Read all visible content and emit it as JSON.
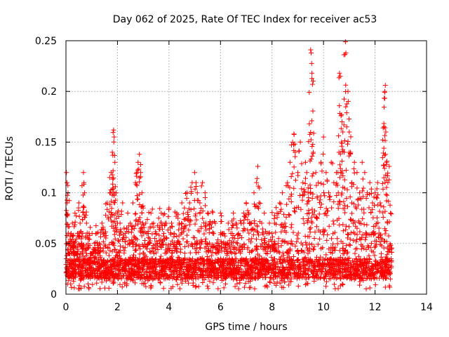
{
  "chart_data": {
    "type": "scatter",
    "title": "Day 062 of 2025, Rate Of TEC Index for receiver ac53",
    "xlabel": "GPS time / hours",
    "ylabel": "ROTI / TECUs",
    "xlim": [
      0,
      14
    ],
    "ylim": [
      0,
      0.25
    ],
    "xticks": [
      0,
      2,
      4,
      6,
      8,
      10,
      12,
      14
    ],
    "xtick_labels": [
      "0",
      "2",
      "4",
      "6",
      "8",
      "10",
      "12",
      "14"
    ],
    "yticks": [
      0,
      0.05,
      0.1,
      0.15,
      0.2,
      0.25
    ],
    "ytick_labels": [
      "0",
      "0.05",
      "0.1",
      "0.15",
      "0.2",
      "0.25"
    ],
    "grid": true,
    "marker": "+",
    "color": "#ff0000",
    "series": [
      {
        "name": "ROTI",
        "points": [
          [
            0.02,
            0.12
          ],
          [
            0.04,
            0.11
          ],
          [
            0.05,
            0.09
          ],
          [
            0.08,
            0.1
          ],
          [
            0.1,
            0.05
          ],
          [
            0.15,
            0.04
          ],
          [
            0.2,
            0.06
          ],
          [
            0.25,
            0.07
          ],
          [
            0.3,
            0.05
          ],
          [
            0.35,
            0.08
          ],
          [
            0.4,
            0.04
          ],
          [
            0.45,
            0.06
          ],
          [
            0.5,
            0.09
          ],
          [
            0.55,
            0.07
          ],
          [
            0.6,
            0.05
          ],
          [
            0.65,
            0.06
          ],
          [
            0.68,
            0.12
          ],
          [
            0.7,
            0.11
          ],
          [
            0.72,
            0.1
          ],
          [
            0.8,
            0.07
          ],
          [
            0.9,
            0.06
          ],
          [
            1.0,
            0.04
          ],
          [
            1.1,
            0.05
          ],
          [
            1.2,
            0.06
          ],
          [
            1.3,
            0.05
          ],
          [
            1.4,
            0.07
          ],
          [
            1.5,
            0.06
          ],
          [
            1.6,
            0.09
          ],
          [
            1.7,
            0.1
          ],
          [
            1.75,
            0.12
          ],
          [
            1.8,
            0.14
          ],
          [
            1.82,
            0.137
          ],
          [
            1.85,
            0.162
          ],
          [
            1.87,
            0.155
          ],
          [
            1.9,
            0.13
          ],
          [
            1.95,
            0.1
          ],
          [
            2.0,
            0.08
          ],
          [
            2.1,
            0.07
          ],
          [
            2.2,
            0.09
          ],
          [
            2.3,
            0.06
          ],
          [
            2.4,
            0.08
          ],
          [
            2.5,
            0.07
          ],
          [
            2.6,
            0.09
          ],
          [
            2.7,
            0.11
          ],
          [
            2.75,
            0.12
          ],
          [
            2.8,
            0.13
          ],
          [
            2.85,
            0.138
          ],
          [
            2.9,
            0.12
          ],
          [
            2.95,
            0.1
          ],
          [
            3.0,
            0.085
          ],
          [
            3.1,
            0.07
          ],
          [
            3.2,
            0.06
          ],
          [
            3.3,
            0.08
          ],
          [
            3.4,
            0.07
          ],
          [
            3.5,
            0.06
          ],
          [
            3.6,
            0.075
          ],
          [
            3.7,
            0.08
          ],
          [
            3.8,
            0.06
          ],
          [
            3.9,
            0.07
          ],
          [
            4.0,
            0.085
          ],
          [
            4.1,
            0.07
          ],
          [
            4.2,
            0.06
          ],
          [
            4.3,
            0.08
          ],
          [
            4.4,
            0.07
          ],
          [
            4.5,
            0.09
          ],
          [
            4.6,
            0.085
          ],
          [
            4.7,
            0.1
          ],
          [
            4.8,
            0.09
          ],
          [
            4.9,
            0.11
          ],
          [
            5.0,
            0.12
          ],
          [
            5.05,
            0.11
          ],
          [
            5.1,
            0.1
          ],
          [
            5.2,
            0.09
          ],
          [
            5.3,
            0.11
          ],
          [
            5.4,
            0.1
          ],
          [
            5.5,
            0.08
          ],
          [
            5.6,
            0.07
          ],
          [
            5.7,
            0.06
          ],
          [
            5.8,
            0.07
          ],
          [
            5.9,
            0.05
          ],
          [
            6.0,
            0.08
          ],
          [
            6.1,
            0.06
          ],
          [
            6.2,
            0.05
          ],
          [
            6.3,
            0.07
          ],
          [
            6.4,
            0.06
          ],
          [
            6.5,
            0.08
          ],
          [
            6.6,
            0.07
          ],
          [
            6.7,
            0.06
          ],
          [
            6.8,
            0.07
          ],
          [
            6.9,
            0.08
          ],
          [
            7.0,
            0.09
          ],
          [
            7.1,
            0.08
          ],
          [
            7.2,
            0.07
          ],
          [
            7.3,
            0.1
          ],
          [
            7.4,
            0.11
          ],
          [
            7.45,
            0.126
          ],
          [
            7.5,
            0.09
          ],
          [
            7.6,
            0.07
          ],
          [
            7.7,
            0.08
          ],
          [
            7.8,
            0.06
          ],
          [
            7.9,
            0.07
          ],
          [
            8.0,
            0.06
          ],
          [
            8.1,
            0.07
          ],
          [
            8.2,
            0.08
          ],
          [
            8.3,
            0.09
          ],
          [
            8.4,
            0.1
          ],
          [
            8.5,
            0.07
          ],
          [
            8.6,
            0.11
          ],
          [
            8.7,
            0.13
          ],
          [
            8.8,
            0.15
          ],
          [
            8.85,
            0.158
          ],
          [
            8.9,
            0.14
          ],
          [
            9.0,
            0.12
          ],
          [
            9.1,
            0.15
          ],
          [
            9.2,
            0.11
          ],
          [
            9.3,
            0.13
          ],
          [
            9.35,
            0.12
          ],
          [
            9.4,
            0.1
          ],
          [
            9.45,
            0.168
          ],
          [
            9.5,
            0.241
          ],
          [
            9.52,
            0.238
          ],
          [
            9.55,
            0.218
          ],
          [
            9.57,
            0.207
          ],
          [
            9.6,
            0.14
          ],
          [
            9.7,
            0.12
          ],
          [
            9.8,
            0.11
          ],
          [
            9.9,
            0.13
          ],
          [
            10.0,
            0.155
          ],
          [
            10.1,
            0.12
          ],
          [
            10.2,
            0.1
          ],
          [
            10.3,
            0.13
          ],
          [
            10.4,
            0.11
          ],
          [
            10.5,
            0.12
          ],
          [
            10.6,
            0.14
          ],
          [
            10.62,
            0.218
          ],
          [
            10.65,
            0.215
          ],
          [
            10.7,
            0.177
          ],
          [
            10.72,
            0.17
          ],
          [
            10.75,
            0.16
          ],
          [
            10.8,
            0.14
          ],
          [
            10.85,
            0.249
          ],
          [
            10.87,
            0.238
          ],
          [
            10.9,
            0.165
          ],
          [
            10.95,
            0.2
          ],
          [
            11.0,
            0.16
          ],
          [
            11.05,
            0.14
          ],
          [
            11.1,
            0.11
          ],
          [
            11.2,
            0.13
          ],
          [
            11.3,
            0.12
          ],
          [
            11.4,
            0.1
          ],
          [
            11.5,
            0.13
          ],
          [
            11.6,
            0.12
          ],
          [
            11.7,
            0.1
          ],
          [
            11.8,
            0.11
          ],
          [
            11.9,
            0.09
          ],
          [
            12.0,
            0.1
          ],
          [
            12.1,
            0.11
          ],
          [
            12.2,
            0.09
          ],
          [
            12.3,
            0.152
          ],
          [
            12.35,
            0.165
          ],
          [
            12.38,
            0.2
          ],
          [
            12.4,
            0.206
          ],
          [
            12.42,
            0.16
          ],
          [
            12.45,
            0.13
          ],
          [
            12.5,
            0.11
          ],
          [
            12.55,
            0.126
          ],
          [
            12.6,
            0.08
          ]
        ],
        "dense_band": {
          "x_start": 0.0,
          "x_end": 12.65,
          "typical_low": 0.005,
          "typical_high": 0.05,
          "upper_envelope": [
            [
              0,
              0.05
            ],
            [
              1,
              0.045
            ],
            [
              2,
              0.05
            ],
            [
              3,
              0.05
            ],
            [
              4,
              0.05
            ],
            [
              5,
              0.055
            ],
            [
              6,
              0.05
            ],
            [
              7,
              0.05
            ],
            [
              8,
              0.05
            ],
            [
              9,
              0.055
            ],
            [
              10,
              0.06
            ],
            [
              11,
              0.065
            ],
            [
              12,
              0.06
            ],
            [
              12.65,
              0.05
            ]
          ]
        }
      }
    ]
  }
}
